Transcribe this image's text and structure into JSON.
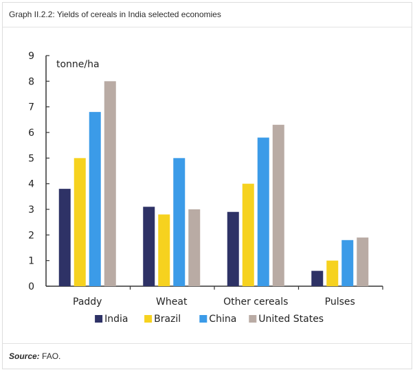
{
  "header": {
    "title": "Graph II.2.2: Yields of cereals in India selected economies"
  },
  "footer": {
    "source_label": "Source:",
    "source_text": "FAO."
  },
  "chart_data": {
    "type": "bar",
    "unit_label": "tonne/ha",
    "categories": [
      "Paddy",
      "Wheat",
      "Other cereals",
      "Pulses"
    ],
    "series": [
      {
        "name": "India",
        "color": "#2e3266",
        "values": [
          3.8,
          3.1,
          2.9,
          0.6
        ]
      },
      {
        "name": "Brazil",
        "color": "#f6d21f",
        "values": [
          5.0,
          2.8,
          4.0,
          1.0
        ]
      },
      {
        "name": "China",
        "color": "#3b9be8",
        "values": [
          6.8,
          5.0,
          5.8,
          1.8
        ]
      },
      {
        "name": "United States",
        "color": "#b9aba4",
        "values": [
          8.0,
          3.0,
          6.3,
          1.9
        ]
      }
    ],
    "yticks": [
      "0",
      "1",
      "2",
      "3",
      "4",
      "5",
      "6",
      "7",
      "8",
      "9"
    ],
    "ylim": [
      0,
      9
    ],
    "legend_position": "bottom",
    "grid": false
  }
}
